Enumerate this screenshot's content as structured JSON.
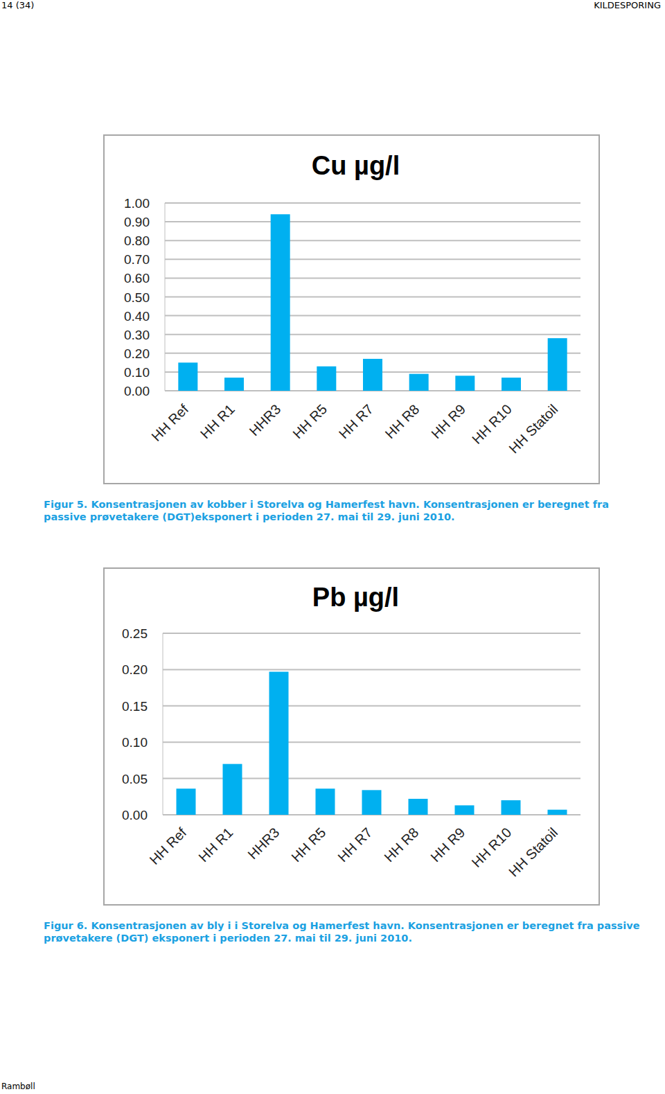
{
  "page": {
    "header_left": "14 (34)",
    "header_right": "KILDESPORING",
    "footer": "Rambøll"
  },
  "chart_data": [
    {
      "type": "bar",
      "title": "Cu µg/l",
      "caption": "Figur 5. Konsentrasjonen av kobber i Storelva og Hamerfest havn. Konsentrasjonen er beregnet fra passive prøvetakere (DGT)eksponert i perioden 27. mai til 29. juni 2010.",
      "categories": [
        "HH Ref",
        "HH R1",
        "HHR3",
        "HH R5",
        "HH R7",
        "HH R8",
        "HH R9",
        "HH R10",
        "HH Statoil"
      ],
      "values": [
        0.15,
        0.07,
        0.94,
        0.13,
        0.17,
        0.09,
        0.08,
        0.07,
        0.28
      ],
      "color": "#00b0f0",
      "ylim": [
        0,
        1
      ],
      "yticks": [
        {
          "value": 0,
          "label": "0.00"
        },
        {
          "value": 0.1,
          "label": "0.10"
        },
        {
          "value": 0.2,
          "label": "0.20"
        },
        {
          "value": 0.3,
          "label": "0.30"
        },
        {
          "value": 0.4,
          "label": "0.40"
        },
        {
          "value": 0.5,
          "label": "0.50"
        },
        {
          "value": 0.6,
          "label": "0.60"
        },
        {
          "value": 0.7,
          "label": "0.70"
        },
        {
          "value": 0.8,
          "label": "0.80"
        },
        {
          "value": 0.9,
          "label": "0.90"
        },
        {
          "value": 1,
          "label": "1.00"
        }
      ],
      "grid": true
    },
    {
      "type": "bar",
      "title": "Pb µg/l",
      "caption": "Figur 6. Konsentrasjonen av bly i i Storelva og Hamerfest havn. Konsentrasjonen er beregnet fra passive prøvetakere (DGT) eksponert i perioden 27. mai til 29. juni 2010.",
      "categories": [
        "HH Ref",
        "HH R1",
        "HHR3",
        "HH R5",
        "HH R7",
        "HH R8",
        "HH R9",
        "HH R10",
        "HH Statoil"
      ],
      "values": [
        0.036,
        0.07,
        0.197,
        0.036,
        0.034,
        0.022,
        0.013,
        0.02,
        0.007
      ],
      "color": "#00b0f0",
      "ylim": [
        0,
        0.25
      ],
      "yticks": [
        {
          "value": 0,
          "label": "0.00"
        },
        0.05,
        {
          "value": 0.1,
          "label": "0.10"
        },
        0.15,
        {
          "value": 0.2,
          "label": "0.20"
        },
        0.25
      ],
      "grid": true
    }
  ]
}
